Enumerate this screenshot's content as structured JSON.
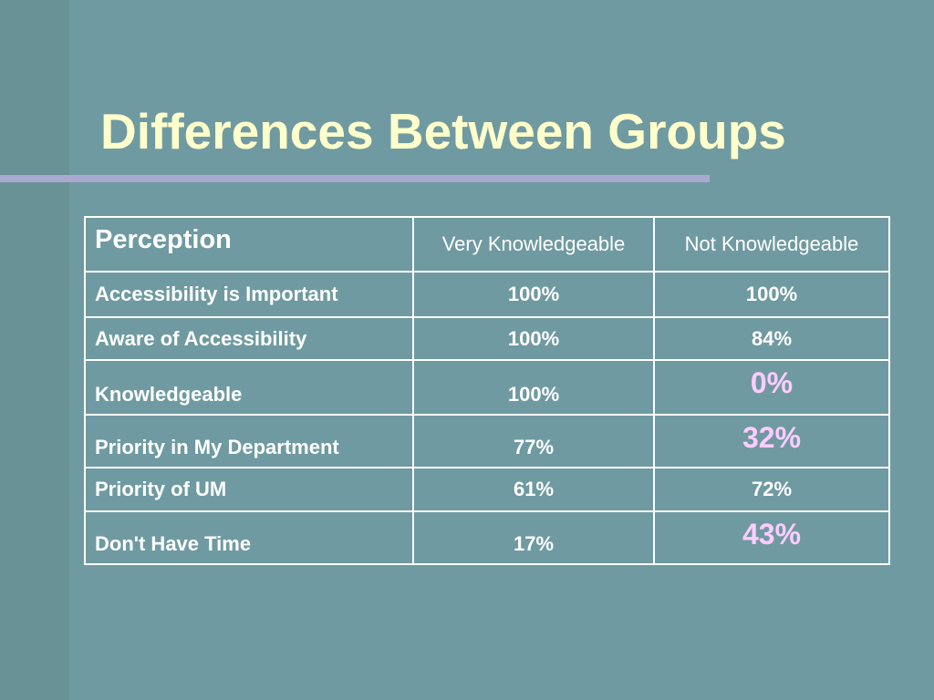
{
  "slide": {
    "title": "Differences Between Groups",
    "colors": {
      "background": "#6f9aa1",
      "side_band": "#689296",
      "title_text": "#ffffcc",
      "title_rule": "#a9a9cf",
      "table_text": "#ffffff",
      "highlight_text": "#ffccff"
    }
  },
  "table": {
    "headers": {
      "perception": "Perception",
      "very": "Very Knowledgeable",
      "not": "Not Knowledgeable"
    },
    "rows": [
      {
        "label": "Accessibility is Important",
        "very": "100%",
        "not": "100%",
        "not_highlighted": false
      },
      {
        "label": "Aware of Accessibility",
        "very": "100%",
        "not": "84%",
        "not_highlighted": false
      },
      {
        "label": "Knowledgeable",
        "very": "100%",
        "not": "0%",
        "not_highlighted": true
      },
      {
        "label": "Priority in My Department",
        "very": "77%",
        "not": "32%",
        "not_highlighted": true
      },
      {
        "label": "Priority of UM",
        "very": "61%",
        "not": "72%",
        "not_highlighted": false
      },
      {
        "label": "Don't Have Time",
        "very": "17%",
        "not": "43%",
        "not_highlighted": true
      }
    ]
  }
}
